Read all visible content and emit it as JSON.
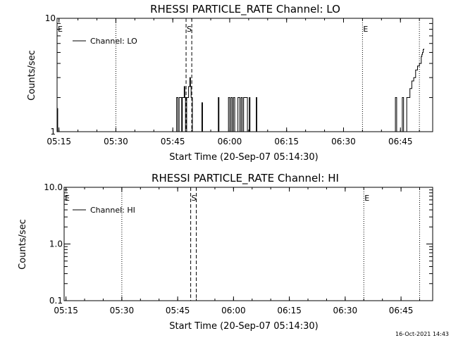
{
  "footer_timestamp": "16-Oct-2021 14:43",
  "chart_data": [
    {
      "type": "line",
      "title": "RHESSI PARTICLE_RATE Channel: LO",
      "xlabel": "Start Time (20-Sep-07 05:14:30)",
      "ylabel": "Counts/sec",
      "y_scale": "log",
      "xlim": [
        "05:14:30",
        "06:53:30"
      ],
      "ylim": [
        1,
        10
      ],
      "x_ticks": [
        "05:15",
        "05:30",
        "05:45",
        "06:00",
        "06:15",
        "06:30",
        "06:45"
      ],
      "y_ticks": [
        "1",
        "10"
      ],
      "legend": {
        "entries": [
          "Channel: LO"
        ],
        "placement": "top-left"
      },
      "markers": [
        {
          "label": "E",
          "time": "05:14:30",
          "style": "none"
        },
        {
          "label": "",
          "time": "05:30:00",
          "style": "dotted"
        },
        {
          "label": "S",
          "time": "05:48:30",
          "style": "dashed"
        },
        {
          "label": "",
          "time": "05:50:00",
          "style": "dashed"
        },
        {
          "label": "E",
          "time": "06:35:00",
          "style": "dotted"
        },
        {
          "label": "",
          "time": "06:50:00",
          "style": "dotted"
        }
      ],
      "series": [
        {
          "name": "Channel: LO",
          "x": [
            "05:14:30",
            "05:14:40",
            "05:14:50",
            "05:15:00",
            "05:45:50",
            "05:46:00",
            "05:46:10",
            "05:46:20",
            "05:46:30",
            "05:46:40",
            "05:46:50",
            "05:47:00",
            "05:47:10",
            "05:47:20",
            "05:47:30",
            "05:47:40",
            "05:47:50",
            "05:48:00",
            "05:48:10",
            "05:48:20",
            "05:48:30",
            "05:48:40",
            "05:48:50",
            "05:49:00",
            "05:49:10",
            "05:49:20",
            "05:49:30",
            "05:49:40",
            "05:49:50",
            "05:50:00",
            "05:50:10",
            "05:50:20",
            "05:50:30",
            "05:52:30",
            "05:52:40",
            "05:52:50",
            "05:56:50",
            "05:57:00",
            "05:57:10",
            "05:59:30",
            "05:59:40",
            "05:59:50",
            "06:00:00",
            "06:00:10",
            "06:00:20",
            "06:00:30",
            "06:00:40",
            "06:00:50",
            "06:01:00",
            "06:01:10",
            "06:01:20",
            "06:01:30",
            "06:01:40",
            "06:02:00",
            "06:02:10",
            "06:02:20",
            "06:02:30",
            "06:02:40",
            "06:02:50",
            "06:03:00",
            "06:03:10",
            "06:03:20",
            "06:03:30",
            "06:03:40",
            "06:03:50",
            "06:04:00",
            "06:04:10",
            "06:04:20",
            "06:04:30",
            "06:04:40",
            "06:04:50",
            "06:05:00",
            "06:05:10",
            "06:05:20",
            "06:06:50",
            "06:07:00",
            "06:07:10",
            "06:43:30",
            "06:43:40",
            "06:43:50",
            "06:44:00",
            "06:45:20",
            "06:45:30",
            "06:45:40",
            "06:45:50",
            "06:46:00",
            "06:46:30",
            "06:46:40",
            "06:47:00",
            "06:47:30",
            "06:48:00",
            "06:48:30",
            "06:49:00",
            "06:49:30",
            "06:50:00",
            "06:50:30",
            "06:50:40",
            "06:50:50",
            "06:51:00",
            "06:51:10"
          ],
          "values": [
            1.6,
            1,
            1,
            1,
            1,
            2,
            2,
            1,
            1,
            2,
            2,
            2,
            2,
            1,
            2,
            2,
            2,
            2.5,
            2,
            1,
            1,
            2,
            2,
            2,
            2.5,
            2.5,
            3,
            2.5,
            2,
            2,
            1,
            1,
            1,
            1,
            1.8,
            1,
            1,
            2,
            1,
            1,
            2,
            2,
            1,
            1,
            2,
            2,
            1,
            1,
            2,
            2,
            1,
            1,
            1,
            1,
            2,
            2,
            2,
            1,
            1,
            2,
            2,
            1,
            1,
            2,
            2,
            2,
            2,
            2,
            2,
            1,
            1,
            1,
            2,
            1,
            1,
            2,
            1,
            1,
            2,
            2,
            1,
            1,
            2,
            2,
            1,
            1,
            1,
            2,
            2,
            2.4,
            2.8,
            3,
            3.5,
            3.8,
            4,
            4.6,
            4.8,
            5,
            5.3,
            5.4
          ]
        }
      ]
    },
    {
      "type": "line",
      "title": "RHESSI PARTICLE_RATE Channel: HI",
      "xlabel": "Start Time (20-Sep-07 05:14:30)",
      "ylabel": "Counts/sec",
      "y_scale": "log",
      "xlim": [
        "05:14:30",
        "06:53:30"
      ],
      "ylim": [
        0.1,
        10
      ],
      "x_ticks": [
        "05:15",
        "05:30",
        "05:45",
        "06:00",
        "06:15",
        "06:30",
        "06:45"
      ],
      "y_ticks": [
        "0.1",
        "1.0",
        "10.0"
      ],
      "legend": {
        "entries": [
          "Channel: HI"
        ],
        "placement": "top-left"
      },
      "markers": [
        {
          "label": "E",
          "time": "05:14:30",
          "style": "none"
        },
        {
          "label": "",
          "time": "05:30:00",
          "style": "dotted"
        },
        {
          "label": "S",
          "time": "05:48:30",
          "style": "dashed"
        },
        {
          "label": "",
          "time": "05:50:00",
          "style": "dashed"
        },
        {
          "label": "E",
          "time": "06:35:00",
          "style": "dotted"
        },
        {
          "label": "",
          "time": "06:50:00",
          "style": "dotted"
        }
      ],
      "series": [
        {
          "name": "Channel: HI",
          "x": [],
          "values": []
        }
      ]
    }
  ]
}
